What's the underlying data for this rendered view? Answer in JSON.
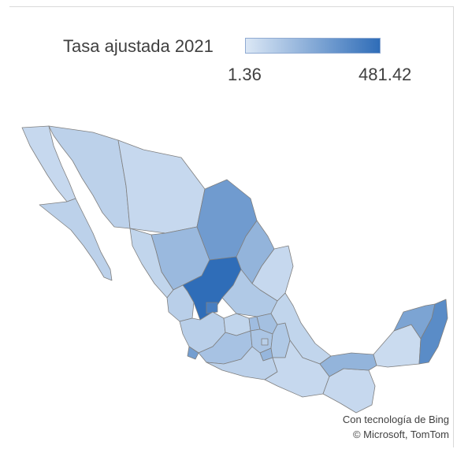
{
  "legend": {
    "title": "Tasa ajustada 2021",
    "min_label": "1.36",
    "max_label": "481.42",
    "min_value": 1.36,
    "max_value": 481.42,
    "color_low": "#dbe7f5",
    "color_high": "#2f6db8"
  },
  "map": {
    "country": "México",
    "regions": [
      {
        "id": "baja-california",
        "level": 0.12
      },
      {
        "id": "baja-california-sur",
        "level": 0.18
      },
      {
        "id": "sonora",
        "level": 0.18
      },
      {
        "id": "chihuahua",
        "level": 0.12
      },
      {
        "id": "coahuila",
        "level": 0.62
      },
      {
        "id": "nuevo-leon",
        "level": 0.42
      },
      {
        "id": "tamaulipas",
        "level": 0.12
      },
      {
        "id": "sinaloa",
        "level": 0.15
      },
      {
        "id": "durango",
        "level": 0.38
      },
      {
        "id": "zacatecas",
        "level": 1.0
      },
      {
        "id": "san-luis-potosi",
        "level": 0.25
      },
      {
        "id": "nayarit",
        "level": 0.2
      },
      {
        "id": "jalisco",
        "level": 0.2
      },
      {
        "id": "aguascalientes",
        "level": 0.85
      },
      {
        "id": "guanajuato",
        "level": 0.15
      },
      {
        "id": "queretaro",
        "level": 0.35
      },
      {
        "id": "hidalgo",
        "level": 0.32
      },
      {
        "id": "colima",
        "level": 0.6
      },
      {
        "id": "michoacan",
        "level": 0.3
      },
      {
        "id": "estado-de-mexico",
        "level": 0.28
      },
      {
        "id": "ciudad-de-mexico",
        "level": 0.2
      },
      {
        "id": "morelos",
        "level": 0.4
      },
      {
        "id": "tlaxcala",
        "level": 0.35
      },
      {
        "id": "puebla",
        "level": 0.25
      },
      {
        "id": "veracruz",
        "level": 0.15
      },
      {
        "id": "guerrero",
        "level": 0.18
      },
      {
        "id": "oaxaca",
        "level": 0.12
      },
      {
        "id": "chiapas",
        "level": 0.12
      },
      {
        "id": "tabasco",
        "level": 0.42
      },
      {
        "id": "campeche",
        "level": 0.1
      },
      {
        "id": "yucatan",
        "level": 0.55
      },
      {
        "id": "quintana-roo",
        "level": 0.75
      }
    ]
  },
  "attribution": {
    "line1": "Con tecnología de Bing",
    "line2": "© Microsoft, TomTom"
  }
}
